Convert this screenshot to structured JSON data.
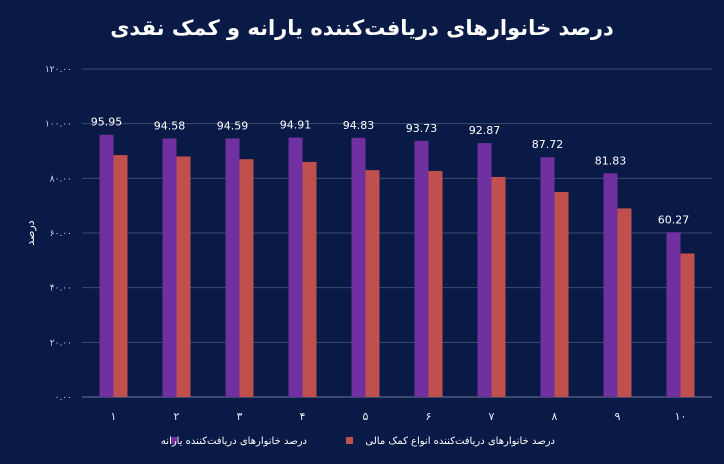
{
  "chart_data": {
    "type": "bar",
    "title": "درصد خانوارهای دریافت‌کننده یارانه و کمک نقدی",
    "xlabel": "",
    "ylabel": "درصد",
    "ylim": [
      0,
      120
    ],
    "yticks": [
      "۰.۰۰",
      "۲۰.۰۰",
      "۴۰.۰۰",
      "۶۰.۰۰",
      "۸۰.۰۰",
      "۱۰۰.۰۰",
      "۱۲۰.۰۰"
    ],
    "categories": [
      "۱",
      "۲",
      "۳",
      "۴",
      "۵",
      "۶",
      "۷",
      "۸",
      "۹",
      "۱۰"
    ],
    "series": [
      {
        "name": "درصد خانوارهای دریافت‌کننده یارانه",
        "color": "#7030a0",
        "values": [
          95.95,
          94.58,
          94.59,
          94.91,
          94.83,
          93.73,
          92.87,
          87.72,
          81.83,
          60.27
        ],
        "labels": [
          "95.95",
          "94.58",
          "94.59",
          "94.91",
          "94.83",
          "93.73",
          "92.87",
          "87.72",
          "81.83",
          "60.27"
        ]
      },
      {
        "name": "درصد خانوارهای دریافت‌کننده انواع کمک مالی",
        "color": "#c0504d",
        "values": [
          88.5,
          88.0,
          87.0,
          86.0,
          83.0,
          82.7,
          80.5,
          75.0,
          69.0,
          52.5
        ]
      }
    ],
    "grid": true,
    "legend_position": "bottom"
  }
}
